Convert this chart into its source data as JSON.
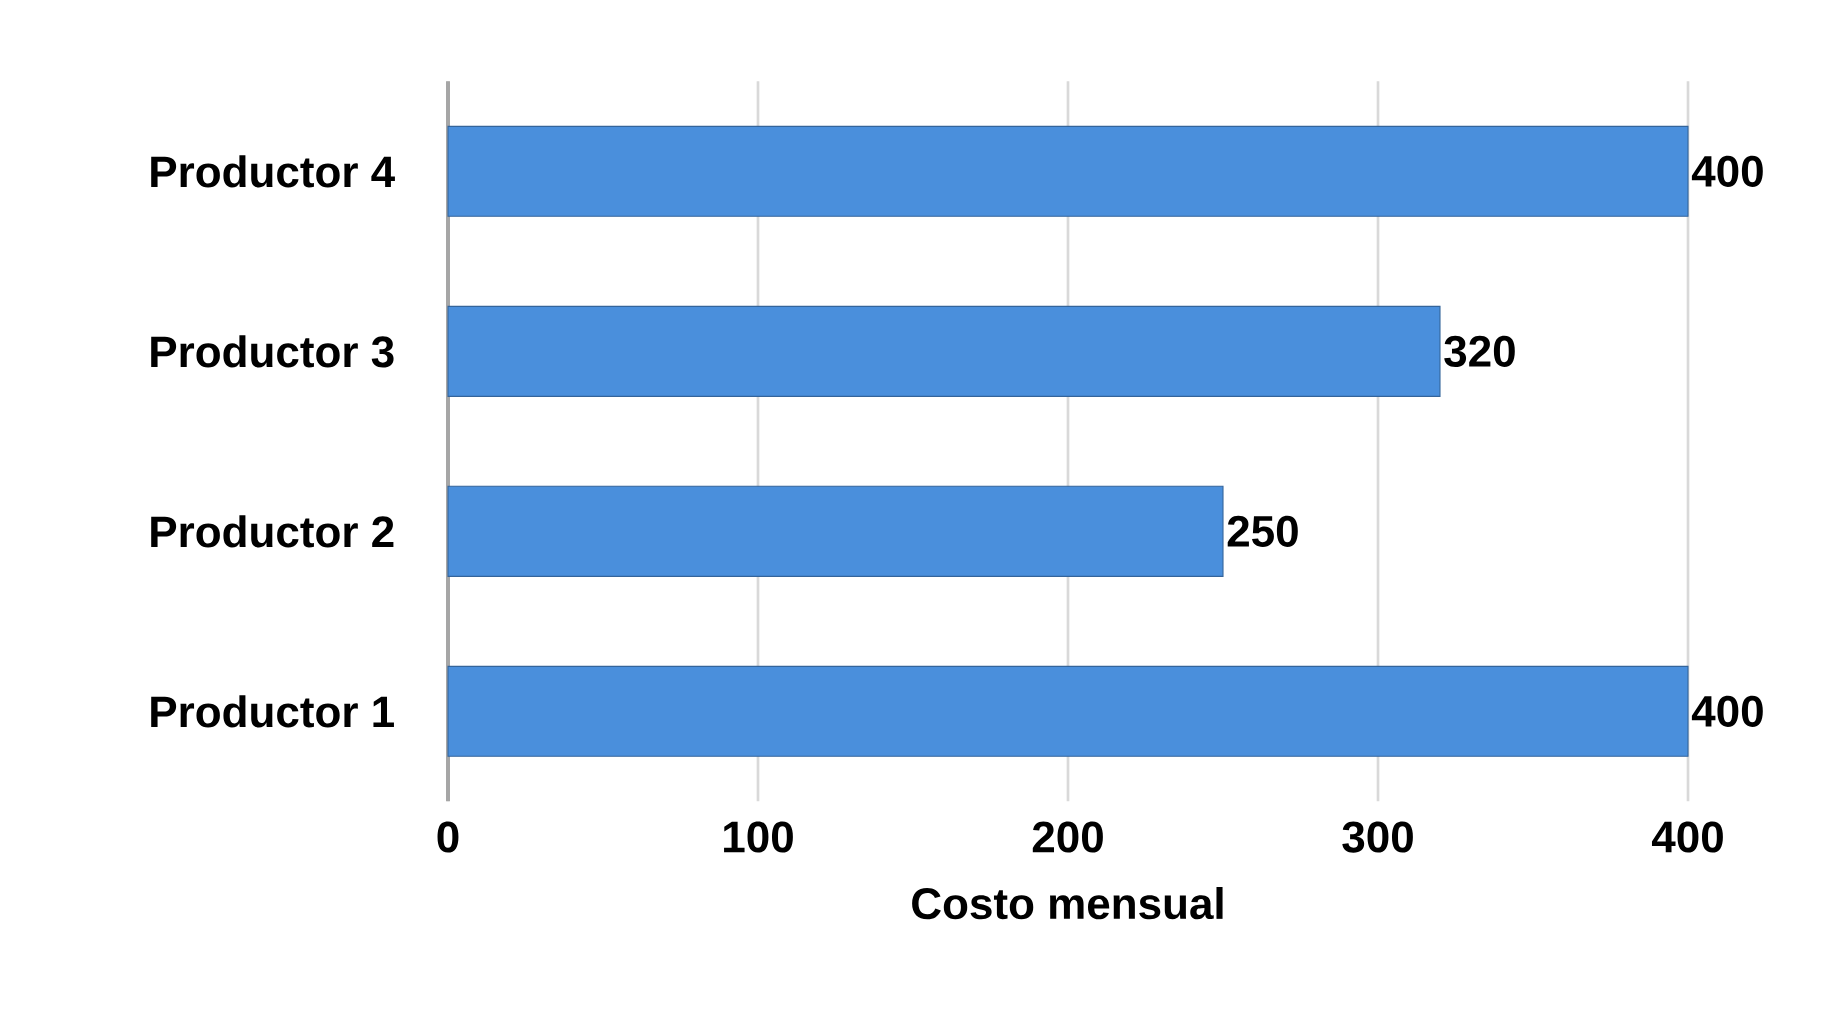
{
  "chart_data": {
    "type": "bar",
    "orientation": "horizontal",
    "xlabel": "Costo mensual",
    "categories": [
      "Productor 4",
      "Productor 3",
      "Productor 2",
      "Productor 1"
    ],
    "values": [
      400,
      320,
      250,
      400
    ],
    "color": "#4a8fdc",
    "xlim": [
      0,
      400
    ],
    "xticks": [
      0,
      100,
      200,
      300,
      400
    ],
    "grid": "x",
    "data_labels": true
  }
}
